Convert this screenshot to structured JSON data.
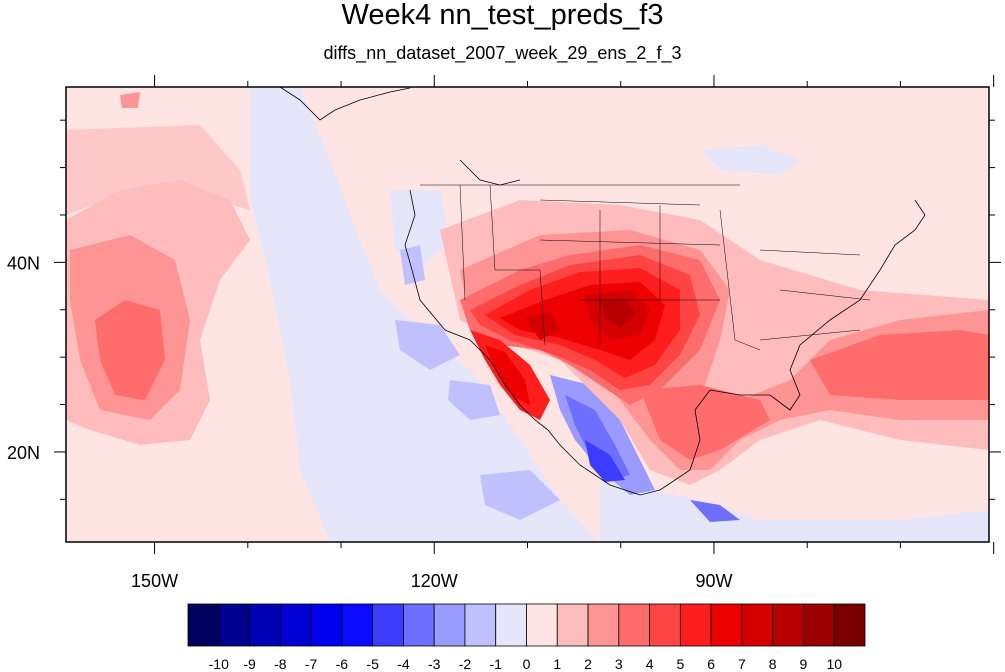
{
  "title": "Week4 nn_test_preds_f3",
  "subtitle": "diffs_nn_dataset_2007_week_29_ens_2_f_3",
  "axes": {
    "x_ticks": [
      {
        "label": "150W",
        "lon": -150
      },
      {
        "label": "120W",
        "lon": -120
      },
      {
        "label": "90W",
        "lon": -90
      }
    ],
    "y_ticks": [
      {
        "label": "40N",
        "lat": 40
      },
      {
        "label": "20N",
        "lat": 20
      }
    ],
    "lon_range": [
      -159.5,
      -60.5
    ],
    "lat_range": [
      10.5,
      58.5
    ]
  },
  "colorbar": {
    "labels": [
      "-10",
      "-9",
      "-8",
      "-7",
      "-6",
      "-5",
      "-4",
      "-3",
      "-2",
      "-1",
      "0",
      "1",
      "2",
      "3",
      "4",
      "5",
      "6",
      "7",
      "8",
      "9",
      "10"
    ],
    "colors": [
      "#00005f",
      "#000090",
      "#0000b4",
      "#0000d6",
      "#0000f0",
      "#0a0aff",
      "#3c3cff",
      "#6e6eff",
      "#9b9bff",
      "#c0c0ff",
      "#e6e6fa",
      "#ffe4e4",
      "#ffbcbc",
      "#ff9494",
      "#ff6c6c",
      "#ff4444",
      "#ff1e1e",
      "#ee0000",
      "#d40000",
      "#b90000",
      "#9c0000",
      "#7a0000"
    ]
  }
}
